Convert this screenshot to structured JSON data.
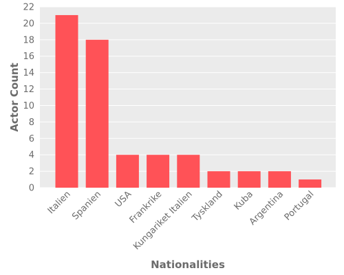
{
  "chart_data": {
    "type": "bar",
    "categories": [
      "Italien",
      "Spanien",
      "USA",
      "Frankrike",
      "Kungariket Italien",
      "Tyskland",
      "Kuba",
      "Argentina",
      "Portugal"
    ],
    "values": [
      21,
      18,
      4,
      4,
      4,
      2,
      2,
      2,
      1
    ],
    "xlabel": "Nationalities",
    "ylabel": "Actor Count",
    "ylim": [
      0,
      22
    ],
    "yticks": [
      0,
      2,
      4,
      6,
      8,
      10,
      12,
      14,
      16,
      18,
      20,
      22
    ],
    "grid": true,
    "bar_color": "#ff5257",
    "plot_background": "#ebebeb",
    "grid_color": "#ffffff"
  }
}
